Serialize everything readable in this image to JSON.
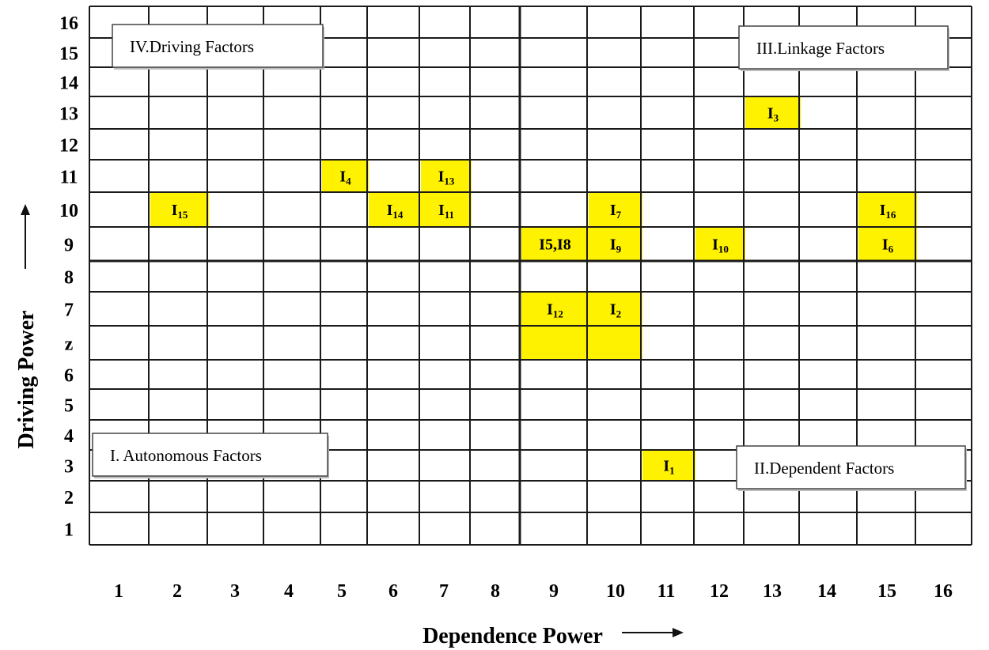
{
  "chart_data": {
    "type": "grid",
    "xlabel": "Dependence Power",
    "ylabel": "Driving Power",
    "x_ticks": [
      "1",
      "2",
      "3",
      "4",
      "5",
      "6",
      "7",
      "8",
      "9",
      "10",
      "11",
      "12",
      "13",
      "14",
      "15",
      "16"
    ],
    "y_ticks": [
      "16",
      "15",
      "14",
      "13",
      "12",
      "11",
      "10",
      "9",
      "8",
      "7",
      "z",
      "6",
      "5",
      "4",
      "3",
      "2",
      "1"
    ],
    "quadrants": [
      {
        "id": "driving",
        "label": "IV.Driving Factors",
        "position": "top-left"
      },
      {
        "id": "linkage",
        "label": "III.Linkage Factors",
        "position": "top-right"
      },
      {
        "id": "autonomous",
        "label": "I. Autonomous Factors",
        "position": "bottom-left"
      },
      {
        "id": "dependent",
        "label": "II.Dependent Factors",
        "position": "bottom-right"
      }
    ],
    "points": [
      {
        "label": "I",
        "sub": "3",
        "x": 13,
        "y": "13"
      },
      {
        "label": "I",
        "sub": "4",
        "x": 5,
        "y": "11"
      },
      {
        "label": "I",
        "sub": "13",
        "x": 7,
        "y": "11"
      },
      {
        "label": "I",
        "sub": "15",
        "x": 2,
        "y": "10"
      },
      {
        "label": "I",
        "sub": "14",
        "x": 6,
        "y": "10"
      },
      {
        "label": "I",
        "sub": "11",
        "x": 7,
        "y": "10"
      },
      {
        "label": "I",
        "sub": "7",
        "x": 10,
        "y": "10"
      },
      {
        "label": "I",
        "sub": "16",
        "x": 15,
        "y": "10"
      },
      {
        "label": "I5,I8",
        "sub": "",
        "x": 9,
        "y": "9",
        "composite": true
      },
      {
        "label": "I",
        "sub": "9",
        "x": 10,
        "y": "9"
      },
      {
        "label": "I",
        "sub": "10",
        "x": 12,
        "y": "9"
      },
      {
        "label": "I",
        "sub": "6",
        "x": 15,
        "y": "9"
      },
      {
        "label": "I",
        "sub": "12",
        "x": 9,
        "y": "7"
      },
      {
        "label": "I",
        "sub": "2",
        "x": 10,
        "y": "7"
      },
      {
        "label": "",
        "sub": "",
        "x": 9,
        "y": "z"
      },
      {
        "label": "",
        "sub": "",
        "x": 10,
        "y": "z"
      },
      {
        "label": "I",
        "sub": "1",
        "x": 11,
        "y": "3"
      }
    ],
    "colors": {
      "highlight": "#FFF200",
      "grid": "#1a1a1a",
      "text": "#111111"
    }
  }
}
